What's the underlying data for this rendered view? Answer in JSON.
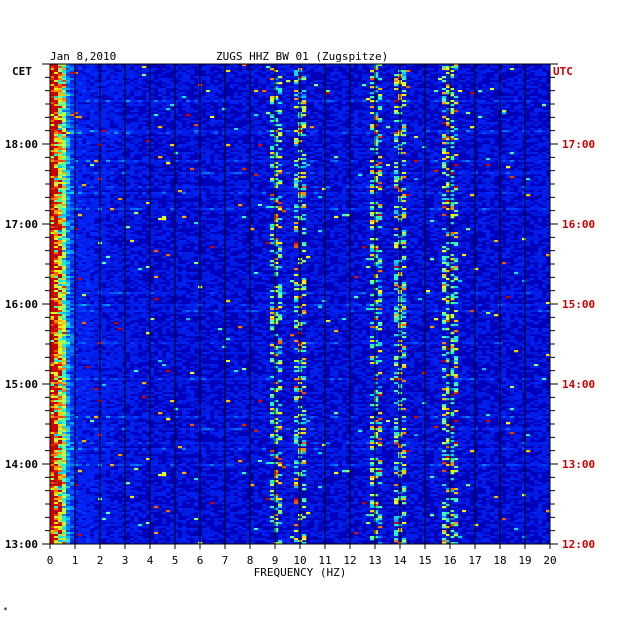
{
  "header": {
    "date": "Jan 8,2010",
    "station": "ZUGS HHZ BW 01 (Zugspitze)",
    "left_zone": "CET",
    "right_zone": "UTC"
  },
  "footer_mark": "*",
  "colors": {
    "background": "#0000bb",
    "utc_text": "#cc0000",
    "axis": "#000000"
  },
  "chart_data": {
    "type": "heatmap",
    "title": "ZUGS HHZ BW 01 (Zugspitze)",
    "xlabel": "FREQUENCY (HZ)",
    "xlim": [
      0,
      20
    ],
    "x_ticks": [
      "0",
      "1",
      "2",
      "3",
      "4",
      "5",
      "6",
      "7",
      "8",
      "9",
      "10",
      "11",
      "12",
      "13",
      "14",
      "15",
      "16",
      "17",
      "18",
      "19",
      "20"
    ],
    "left_axis": {
      "zone": "CET",
      "ticks": [
        {
          "label": "18:00",
          "hours_from_top": 1
        },
        {
          "label": "17:00",
          "hours_from_top": 2
        },
        {
          "label": "16:00",
          "hours_from_top": 3
        },
        {
          "label": "15:00",
          "hours_from_top": 4
        },
        {
          "label": "14:00",
          "hours_from_top": 5
        },
        {
          "label": "13:00",
          "hours_from_top": 6
        }
      ]
    },
    "right_axis": {
      "zone": "UTC",
      "ticks": [
        {
          "label": "17:00",
          "hours_from_top": 1
        },
        {
          "label": "16:00",
          "hours_from_top": 2
        },
        {
          "label": "15:00",
          "hours_from_top": 3
        },
        {
          "label": "14:00",
          "hours_from_top": 4
        },
        {
          "label": "13:00",
          "hours_from_top": 5
        },
        {
          "label": "12:00",
          "hours_from_top": 6
        }
      ]
    },
    "duration_hours": 6,
    "bright_bands_hz": [
      0.3,
      9,
      10,
      13,
      14,
      16
    ],
    "grid": true
  }
}
